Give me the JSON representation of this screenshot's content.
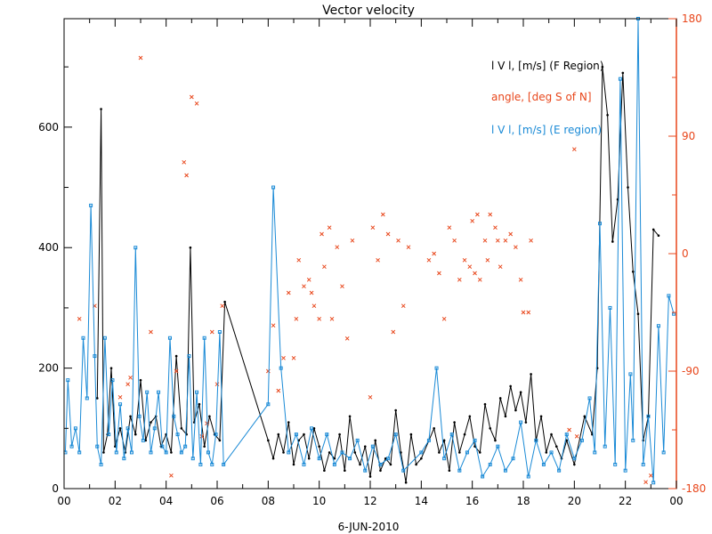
{
  "chart_data": {
    "type": "line",
    "title": "Vector velocity",
    "xlabel": "6-JUN-2010",
    "xlim": [
      0,
      24
    ],
    "ylim_left": [
      0,
      780
    ],
    "ylim_right": [
      -180,
      180
    ],
    "x_ticks": [
      "00",
      "02",
      "04",
      "06",
      "08",
      "10",
      "12",
      "14",
      "16",
      "18",
      "20",
      "22",
      "00"
    ],
    "x_tick_values": [
      0,
      2,
      4,
      6,
      8,
      10,
      12,
      14,
      16,
      18,
      20,
      22,
      24
    ],
    "y_left_ticks": [
      "0",
      "200",
      "400",
      "600"
    ],
    "y_left_tick_values": [
      0,
      200,
      400,
      600
    ],
    "y_right_ticks": [
      "-180",
      "-90",
      "0",
      "90",
      "180"
    ],
    "y_right_tick_values": [
      -180,
      -90,
      0,
      90,
      180
    ],
    "colors": {
      "f_region": "#000000",
      "angle": "#e8471c",
      "e_region": "#1a8ad6",
      "right_axis": "#e8471c"
    },
    "legend": [
      {
        "label": "l V l, [m/s] (F Region)",
        "color": "#000000"
      },
      {
        "label": "angle, [deg S of N]",
        "color": "#e8471c"
      },
      {
        "label": "l V l, [m/s] (E region)",
        "color": "#1a8ad6"
      }
    ],
    "series": [
      {
        "name": "l V l, [m/s] (F Region)",
        "axis": "left",
        "marker": "dot",
        "x": [
          1.3,
          1.45,
          1.55,
          1.7,
          1.85,
          2.0,
          2.2,
          2.4,
          2.6,
          2.8,
          3.0,
          3.2,
          3.4,
          3.6,
          3.8,
          4.0,
          4.2,
          4.4,
          4.6,
          4.8,
          4.95,
          5.1,
          5.3,
          5.5,
          5.7,
          5.9,
          6.1,
          6.3,
          8.0,
          8.2,
          8.4,
          8.6,
          8.8,
          9.0,
          9.2,
          9.4,
          9.6,
          9.8,
          10.0,
          10.2,
          10.4,
          10.6,
          10.8,
          11.0,
          11.2,
          11.4,
          11.6,
          11.8,
          12.0,
          12.2,
          12.4,
          12.6,
          12.8,
          13.0,
          13.2,
          13.4,
          13.6,
          13.8,
          14.0,
          14.5,
          14.7,
          14.9,
          15.1,
          15.3,
          15.5,
          15.7,
          15.9,
          16.1,
          16.3,
          16.5,
          16.7,
          16.9,
          17.1,
          17.3,
          17.5,
          17.7,
          17.9,
          18.1,
          18.3,
          18.5,
          18.7,
          18.9,
          19.1,
          19.3,
          19.5,
          19.7,
          20.0,
          20.4,
          20.7,
          20.9,
          21.1,
          21.3,
          21.5,
          21.7,
          21.9,
          22.1,
          22.3,
          22.5,
          22.7,
          22.9,
          23.1,
          23.3
        ],
        "values": [
          150,
          630,
          60,
          90,
          200,
          70,
          100,
          60,
          120,
          90,
          180,
          80,
          110,
          120,
          70,
          90,
          60,
          220,
          100,
          90,
          400,
          110,
          140,
          70,
          120,
          90,
          80,
          310,
          80,
          50,
          90,
          60,
          110,
          40,
          80,
          90,
          50,
          100,
          70,
          30,
          60,
          50,
          90,
          30,
          120,
          60,
          40,
          70,
          20,
          80,
          30,
          50,
          40,
          130,
          60,
          10,
          90,
          40,
          50,
          100,
          60,
          80,
          30,
          110,
          60,
          90,
          120,
          70,
          60,
          140,
          100,
          80,
          150,
          120,
          170,
          130,
          160,
          110,
          190,
          80,
          120,
          60,
          90,
          70,
          50,
          80,
          40,
          120,
          90,
          200,
          700,
          620,
          410,
          480,
          690,
          500,
          360,
          290,
          80,
          120,
          430,
          420
        ]
      },
      {
        "name": "angle, [deg S of N]",
        "axis": "right",
        "marker": "x",
        "x": [
          0.6,
          1.2,
          2.2,
          2.5,
          2.6,
          3.0,
          3.4,
          4.2,
          4.4,
          4.7,
          4.8,
          5.0,
          5.2,
          5.4,
          5.6,
          5.8,
          6.0,
          6.2,
          8.0,
          8.2,
          8.4,
          8.6,
          8.8,
          9.0,
          9.1,
          9.2,
          9.4,
          9.6,
          9.7,
          9.8,
          10.0,
          10.1,
          10.2,
          10.4,
          10.5,
          10.7,
          10.9,
          11.1,
          11.3,
          12.0,
          12.1,
          12.3,
          12.5,
          12.7,
          12.9,
          13.1,
          13.3,
          13.5,
          14.3,
          14.5,
          14.7,
          14.9,
          15.1,
          15.3,
          15.5,
          15.7,
          15.9,
          16.0,
          16.1,
          16.2,
          16.3,
          16.5,
          16.6,
          16.7,
          16.9,
          17.0,
          17.1,
          17.3,
          17.5,
          17.7,
          17.9,
          18.0,
          18.2,
          18.3,
          19.8,
          20.0,
          20.1,
          22.8,
          23.0
        ],
        "values": [
          -50,
          -40,
          -110,
          -100,
          -95,
          150,
          -60,
          -170,
          -90,
          70,
          60,
          120,
          115,
          -140,
          -130,
          -60,
          -100,
          -40,
          -90,
          -55,
          -105,
          -80,
          -30,
          -80,
          -50,
          -5,
          -25,
          -20,
          -30,
          -40,
          -50,
          15,
          -10,
          20,
          -50,
          5,
          -25,
          -65,
          10,
          -110,
          20,
          -5,
          30,
          15,
          -60,
          10,
          -40,
          5,
          -5,
          0,
          -15,
          -50,
          20,
          10,
          -20,
          -5,
          -10,
          25,
          -15,
          30,
          -20,
          10,
          -5,
          30,
          20,
          10,
          -10,
          10,
          15,
          5,
          -20,
          -45,
          -45,
          10,
          -135,
          80,
          -140,
          -175,
          -170
        ]
      },
      {
        "name": "l V l, [m/s] (E region)",
        "axis": "left",
        "marker": "square",
        "x": [
          0.05,
          0.15,
          0.3,
          0.45,
          0.6,
          0.75,
          0.9,
          1.05,
          1.2,
          1.3,
          1.45,
          1.6,
          1.75,
          1.9,
          2.05,
          2.2,
          2.35,
          2.5,
          2.65,
          2.8,
          2.95,
          3.1,
          3.25,
          3.4,
          3.55,
          3.7,
          3.85,
          4.0,
          4.15,
          4.3,
          4.45,
          4.6,
          4.75,
          4.9,
          5.05,
          5.2,
          5.35,
          5.5,
          5.65,
          5.8,
          5.95,
          6.1,
          6.25,
          8.0,
          8.2,
          8.5,
          8.8,
          9.1,
          9.4,
          9.7,
          10.0,
          10.3,
          10.6,
          10.9,
          11.2,
          11.5,
          11.8,
          12.1,
          12.4,
          12.7,
          13.0,
          13.3,
          14.0,
          14.3,
          14.6,
          14.9,
          15.2,
          15.5,
          15.8,
          16.1,
          16.4,
          16.7,
          17.0,
          17.3,
          17.6,
          17.9,
          18.2,
          18.5,
          18.8,
          19.1,
          19.4,
          19.7,
          20.0,
          20.3,
          20.6,
          20.8,
          21.0,
          21.2,
          21.4,
          21.6,
          21.8,
          22.0,
          22.2,
          22.3,
          22.5,
          22.7,
          22.9,
          23.1,
          23.3,
          23.5,
          23.7,
          23.9
        ],
        "values": [
          60,
          180,
          70,
          100,
          60,
          250,
          150,
          470,
          220,
          70,
          40,
          250,
          90,
          180,
          60,
          140,
          50,
          100,
          60,
          400,
          120,
          80,
          160,
          60,
          100,
          160,
          70,
          60,
          250,
          120,
          90,
          60,
          70,
          220,
          50,
          160,
          40,
          250,
          60,
          40,
          90,
          260,
          40,
          140,
          500,
          200,
          60,
          90,
          40,
          100,
          50,
          90,
          40,
          60,
          50,
          80,
          30,
          70,
          40,
          50,
          90,
          30,
          60,
          80,
          200,
          50,
          90,
          30,
          60,
          80,
          20,
          40,
          70,
          30,
          50,
          110,
          20,
          80,
          40,
          60,
          30,
          90,
          50,
          80,
          150,
          60,
          440,
          70,
          300,
          40,
          680,
          30,
          190,
          80,
          780,
          40,
          120,
          10,
          270,
          60,
          320,
          290
        ]
      }
    ]
  }
}
